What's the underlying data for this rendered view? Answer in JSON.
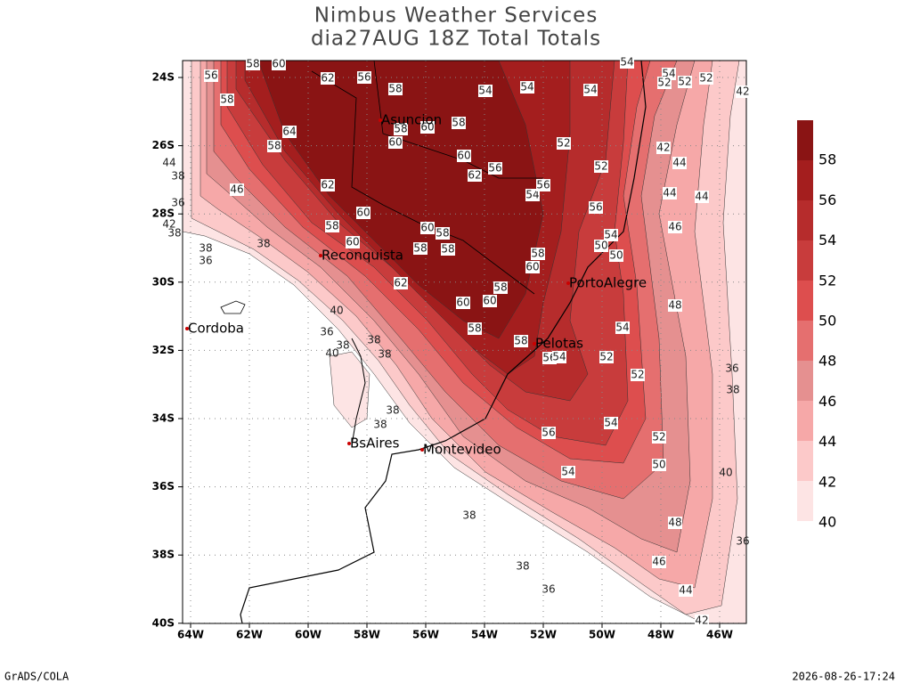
{
  "header": {
    "title": "Nimbus Weather Services",
    "subtitle": "dia27AUG 18Z Total Totals"
  },
  "map": {
    "lon_ticks": [
      "64W",
      "62W",
      "60W",
      "58W",
      "56W",
      "54W",
      "52W",
      "50W",
      "48W",
      "46W"
    ],
    "lat_ticks": [
      "24S",
      "26S",
      "28S",
      "30S",
      "32S",
      "34S",
      "36S",
      "38S",
      "40S"
    ],
    "cities": [
      "Asuncion",
      "Reconquista",
      "Cordoba",
      "PortoAlegre",
      "Pelotas",
      "BsAires",
      "Montevideo"
    ],
    "contour_labels": [
      56,
      58,
      60,
      62,
      56,
      58,
      54,
      54,
      54,
      54,
      54,
      52,
      52,
      52,
      42,
      58,
      64,
      58,
      58,
      60,
      58,
      60,
      52,
      60,
      56,
      62,
      52,
      42,
      44,
      62,
      54,
      56,
      44,
      44,
      60,
      56,
      46,
      58,
      60,
      58,
      54,
      60,
      50,
      58,
      58,
      50,
      58,
      60,
      62,
      58,
      60,
      60,
      48,
      58,
      54,
      58,
      56,
      54,
      52,
      52,
      54,
      56,
      52,
      50,
      54,
      48,
      46,
      44,
      42,
      36,
      38,
      40,
      36,
      38,
      38,
      36,
      40,
      38,
      38,
      36,
      36,
      38,
      40,
      38,
      38,
      38,
      38,
      46,
      42,
      38,
      36,
      38,
      44
    ]
  },
  "colorbar": {
    "labels": [
      40,
      42,
      44,
      46,
      48,
      50,
      52,
      54,
      56,
      58
    ],
    "colors": [
      "#fde4e4",
      "#fcc9c9",
      "#f6a8a8",
      "#e59090",
      "#e56f6f",
      "#dd4e4e",
      "#c83c3c",
      "#b62c2c",
      "#a41e1e",
      "#8a1414"
    ]
  },
  "footer": {
    "left": "GrADS/COLA",
    "right": "2026-08-26-17:24"
  }
}
